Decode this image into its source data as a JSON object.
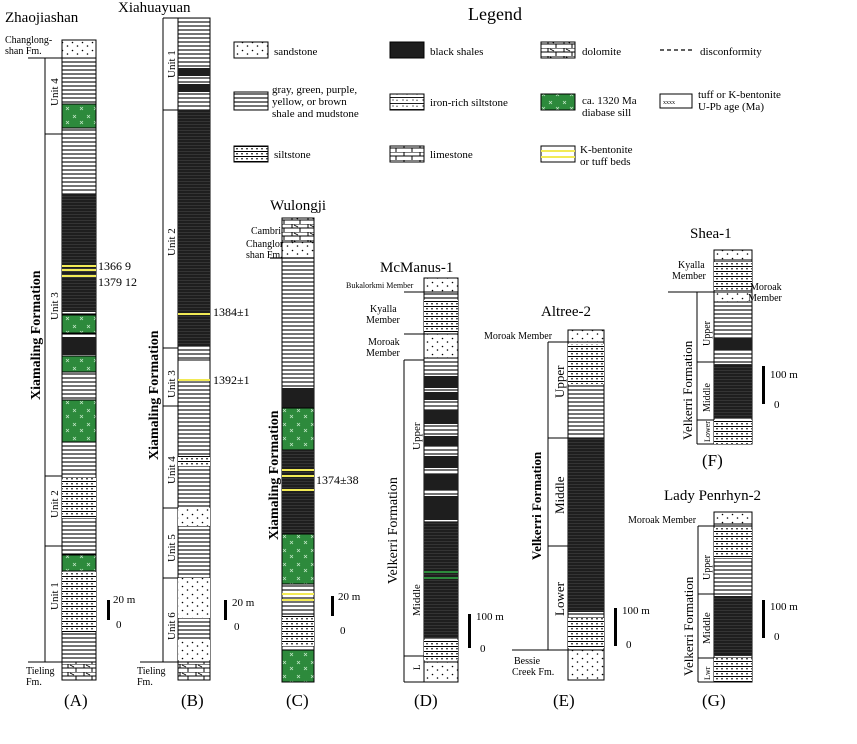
{
  "legend": {
    "title": "Legend",
    "items": [
      {
        "id": "sandstone",
        "label": "sandstone"
      },
      {
        "id": "black_shales",
        "label": "black shales"
      },
      {
        "id": "dolomite",
        "label": "dolomite"
      },
      {
        "id": "disconformity",
        "label": "disconformity"
      },
      {
        "id": "colored_shale",
        "label": "gray, green, purple, yellow, or brown shale and mudstone"
      },
      {
        "id": "iron_siltstone",
        "label": "iron-rich siltstone"
      },
      {
        "id": "diabase_sill",
        "label": "ca. 1320 Ma diabase sill"
      },
      {
        "id": "tuff_age",
        "label": "tuff or K-bentonite U-Pb age (Ma)"
      },
      {
        "id": "siltstone",
        "label": "siltstone"
      },
      {
        "id": "limestone",
        "label": "limestone"
      },
      {
        "id": "kbentonite",
        "label": "K-bentonite or tuff beds"
      }
    ],
    "colors": {
      "diabase": "#2d8a3c",
      "tuff": "#f2ea55",
      "black": "#1e1e1e"
    }
  },
  "sections": [
    {
      "id": "A",
      "title": "Zhaojiashan",
      "caption": "(A)",
      "formation": "Xiamaling Formation",
      "top_unit": "Changlong-shan Fm.",
      "base_unit": "Tieling Fm.",
      "units": [
        "Unit 4",
        "Unit 3",
        "Unit 2",
        "Unit 1"
      ],
      "ages": [
        "1366 9",
        "1379 12"
      ],
      "scale": {
        "label": "20 m",
        "zero": "0"
      }
    },
    {
      "id": "B",
      "title": "Xiahuayuan",
      "caption": "(B)",
      "formation": "Xiamaling Formation",
      "base_unit": "Tieling Fm.",
      "units": [
        "Unit 1",
        "Unit 2",
        "Unit 3",
        "Unit 4",
        "Unit 5",
        "Unit 6"
      ],
      "ages": [
        "1384±1",
        "1392±1"
      ],
      "scale": {
        "label": "20 m",
        "zero": "0"
      }
    },
    {
      "id": "C",
      "title": "Wulongji",
      "caption": "(C)",
      "formation": "Xiamaling Formation",
      "top_units": [
        "Cambrian",
        "Changlong-shan Fm."
      ],
      "ages": [
        "1374±38"
      ],
      "scale": {
        "label": "20 m",
        "zero": "0"
      }
    },
    {
      "id": "D",
      "title": "McManus-1",
      "caption": "(D)",
      "formation": "Velkerri Formation",
      "members": [
        "Bukalorkmi Member",
        "Kyalla Member",
        "Moroak Member"
      ],
      "subunits": [
        "Upper",
        "Middle",
        "L"
      ],
      "scale": {
        "label": "100 m",
        "zero": "0"
      }
    },
    {
      "id": "E",
      "title": "Altree-2",
      "caption": "(E)",
      "formation": "Velkerri Formation",
      "members": [
        "Moroak Member"
      ],
      "subunits": [
        "Upper",
        "Middle",
        "Lower"
      ],
      "base_unit": "Bessie Creek Fm.",
      "scale": {
        "label": "100 m",
        "zero": "0"
      }
    },
    {
      "id": "F",
      "title": "Shea-1",
      "caption": "(F)",
      "formation": "Velkerri Formation",
      "members": [
        "Kyalla Member",
        "Moroak Member"
      ],
      "subunits": [
        "Upper",
        "Middle",
        "Lower"
      ],
      "scale": {
        "label": "100 m",
        "zero": "0"
      }
    },
    {
      "id": "G",
      "title": "Lady Penrhyn-2",
      "caption": "(G)",
      "formation": "Velkerri Formation",
      "members": [
        "Moroak Member"
      ],
      "subunits": [
        "Upper",
        "Middle",
        "Lwr"
      ],
      "scale": {
        "label": "100 m",
        "zero": "0"
      }
    }
  ]
}
